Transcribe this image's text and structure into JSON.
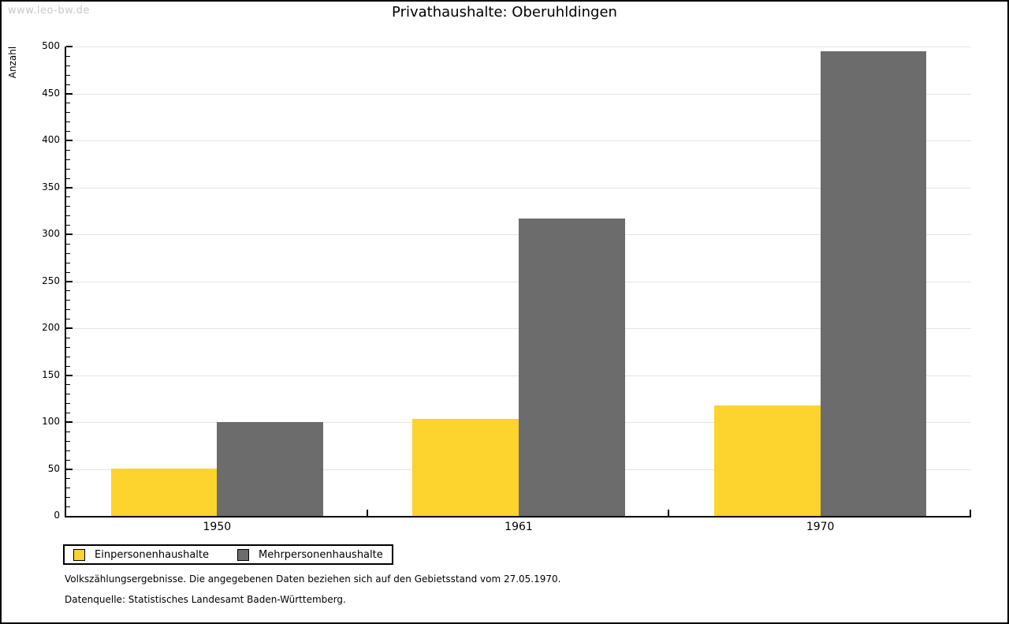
{
  "watermark": "www.leo-bw.de",
  "title": "Privathaushalte: Oberuhldingen",
  "chart_data": {
    "type": "bar",
    "title": "Privathaushalte: Oberuhldingen",
    "categories": [
      "1950",
      "1961",
      "1970"
    ],
    "series": [
      {
        "name": "Einpersonenhaushalte",
        "color": "#FDD32D",
        "values": [
          50,
          103,
          118
        ]
      },
      {
        "name": "Mehrpersonenhaushalte",
        "color": "#6C6C6C",
        "values": [
          100,
          317,
          495
        ]
      }
    ],
    "xlabel": "",
    "ylabel": "Anzahl",
    "ylim": [
      0,
      500
    ],
    "y_major_step": 50,
    "y_minor_step": 10,
    "y_tick_labels": [
      "0",
      "50",
      "100",
      "150",
      "200",
      "250",
      "300",
      "350",
      "400",
      "450",
      "500"
    ],
    "grid": true,
    "gridline_color": "#e4e4e4",
    "legend_position": "bottom-left"
  },
  "legend": {
    "items": [
      {
        "label": "Einpersonenhaushalte",
        "color": "#FDD32D"
      },
      {
        "label": "Mehrpersonenhaushalte",
        "color": "#6C6C6C"
      }
    ]
  },
  "footnotes": [
    "Volkszählungsergebnisse. Die angegebenen Daten beziehen sich auf den Gebietsstand vom 27.05.1970.",
    "Datenquelle: Statistisches Landesamt Baden-Württemberg."
  ]
}
